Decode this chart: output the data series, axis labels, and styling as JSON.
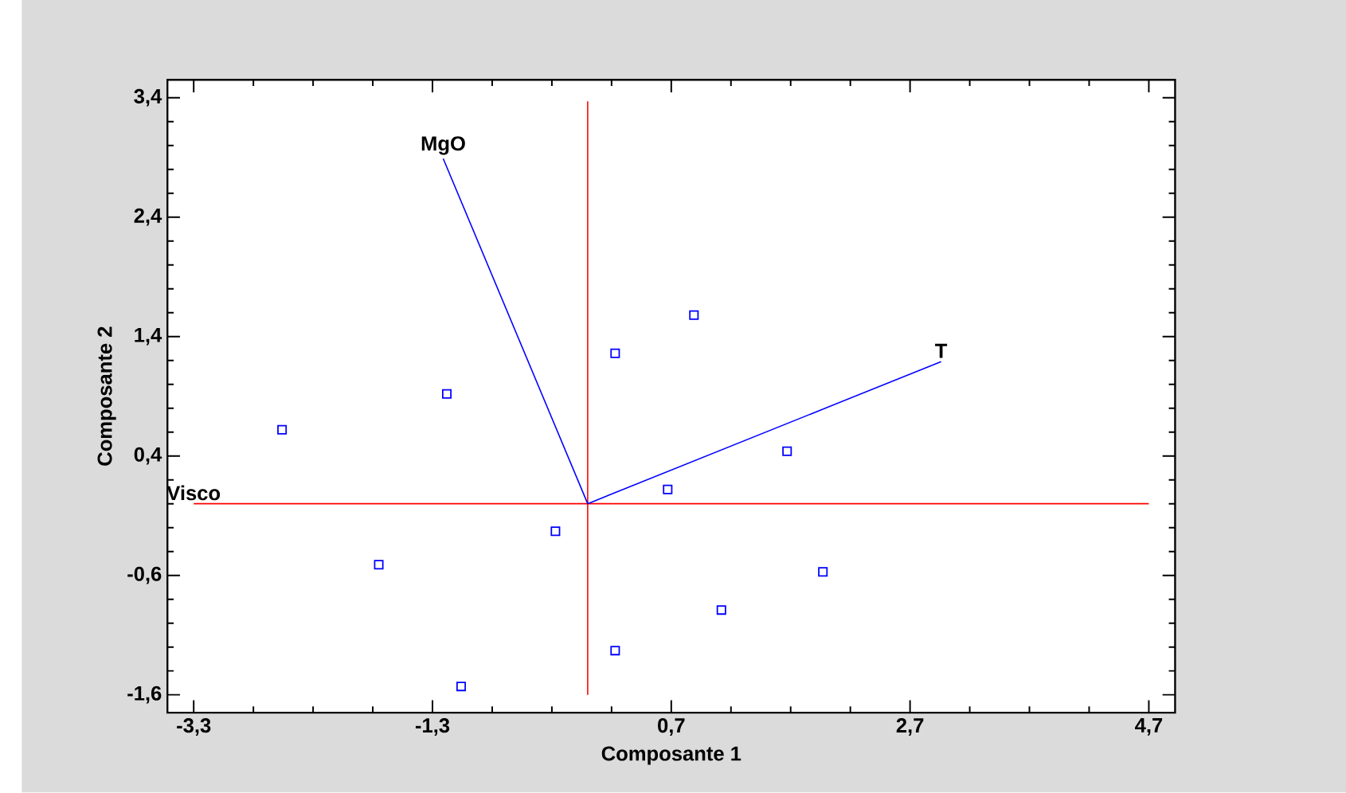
{
  "chart_data": {
    "type": "scatter",
    "xlabel": "Composante 1",
    "ylabel": "Composante 2",
    "annotations": [
      {
        "text": "Visco",
        "x": -3.3,
        "y": 0
      }
    ],
    "xlim": [
      -3.52,
      4.92
    ],
    "ylim": [
      -1.75,
      3.55
    ],
    "xticks": [
      {
        "value": -3.3,
        "label": "-3,3"
      },
      {
        "value": -1.3,
        "label": "-1,3"
      },
      {
        "value": 0.7,
        "label": "0,7"
      },
      {
        "value": 2.7,
        "label": "2,7"
      },
      {
        "value": 4.7,
        "label": "4,7"
      }
    ],
    "yticks": [
      {
        "value": -1.6,
        "label": "-1,6"
      },
      {
        "value": -0.6,
        "label": "-0,6"
      },
      {
        "value": 0.4,
        "label": "0,4"
      },
      {
        "value": 1.4,
        "label": "1,4"
      },
      {
        "value": 2.4,
        "label": "2,4"
      },
      {
        "value": 3.4,
        "label": "3,4"
      }
    ],
    "series": [
      {
        "type": "line",
        "color": "#ff0000",
        "x": [
          -3.3,
          4.7
        ],
        "values": [
          0,
          0
        ]
      },
      {
        "type": "line",
        "color": "#ff0000",
        "x": [
          0,
          0
        ],
        "values": [
          -1.6,
          3.37
        ]
      },
      {
        "type": "line",
        "name": "MgO",
        "color": "#0000ff",
        "x": [
          0,
          -1.21
        ],
        "values": [
          0,
          2.89
        ]
      },
      {
        "type": "line",
        "name": "T",
        "color": "#0000ff",
        "x": [
          0,
          2.96
        ],
        "values": [
          0,
          1.19
        ]
      },
      {
        "color": "#0000ff",
        "marker": "square",
        "x": [
          -2.56,
          -1.18,
          0.23,
          0.89,
          0.67,
          -0.27,
          -1.75,
          0.23,
          -1.06,
          1.67,
          1.97,
          1.12
        ],
        "values": [
          0.62,
          0.92,
          1.26,
          1.58,
          0.12,
          -0.23,
          -0.51,
          -1.23,
          -1.53,
          0.44,
          -0.57,
          -0.89
        ]
      }
    ]
  }
}
